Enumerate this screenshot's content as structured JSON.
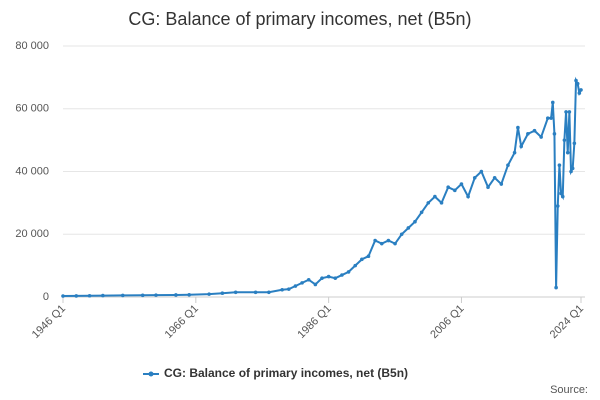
{
  "chart_data": {
    "type": "line",
    "title": "CG: Balance of primary incomes, net (B5n)",
    "source": "Source:",
    "xlim": [
      1946,
      2024
    ],
    "xticks": [
      {
        "value": 1946,
        "label": "1946 Q1"
      },
      {
        "value": 1966,
        "label": "1966 Q1"
      },
      {
        "value": 1986,
        "label": "1986 Q1"
      },
      {
        "value": 2006,
        "label": "2006 Q1"
      },
      {
        "value": 2024,
        "label": "2024 Q1"
      }
    ],
    "ylim": [
      0,
      80000
    ],
    "yticks": [
      0,
      {
        "value": 20000,
        "label": "20 000"
      },
      {
        "value": 40000,
        "label": "40 000"
      },
      {
        "value": 60000,
        "label": "60 000"
      },
      {
        "value": 80000,
        "label": "80 000"
      }
    ],
    "grid": true,
    "legend": "bottom",
    "x": [
      1946,
      1948,
      1950,
      1952,
      1955,
      1958,
      1960,
      1963,
      1965,
      1968,
      1970,
      1972,
      1975,
      1977,
      1979,
      1980,
      1981,
      1982,
      1983,
      1984,
      1985,
      1986,
      1987,
      1988,
      1989,
      1990,
      1991,
      1992,
      1993,
      1994,
      1995,
      1996,
      1997,
      1998,
      1999,
      2000,
      2001,
      2002,
      2003,
      2004,
      2005,
      2006,
      2007,
      2008,
      2009,
      2010,
      2011,
      2012,
      2013,
      2014,
      2014.5,
      2015,
      2016,
      2017,
      2018,
      2019,
      2019.5,
      2019.75,
      2020,
      2020.25,
      2020.5,
      2020.75,
      2021,
      2021.25,
      2021.5,
      2021.75,
      2022,
      2022.25,
      2022.5,
      2022.75,
      2023,
      2023.25,
      2023.5,
      2023.75,
      2024
    ],
    "series": [
      {
        "name": "CG: Balance of primary incomes, net (B5n)",
        "color": "#2a7fc1",
        "values": [
          300,
          350,
          400,
          450,
          500,
          550,
          600,
          650,
          700,
          900,
          1200,
          1500,
          1500,
          1500,
          2300,
          2500,
          3500,
          4500,
          5500,
          4000,
          6000,
          6500,
          6000,
          7000,
          8000,
          10000,
          12000,
          13000,
          18000,
          17000,
          18000,
          17000,
          20000,
          22000,
          24000,
          27000,
          30000,
          32000,
          30000,
          35000,
          34000,
          36000,
          32000,
          38000,
          40000,
          35000,
          38000,
          36000,
          42000,
          46000,
          54000,
          48000,
          52000,
          53000,
          51000,
          57000,
          57000,
          62000,
          52000,
          3000,
          29000,
          42000,
          33000,
          32000,
          50000,
          59000,
          46000,
          59000,
          40000,
          41000,
          49000,
          69000,
          68000,
          65000,
          66000
        ]
      }
    ]
  }
}
